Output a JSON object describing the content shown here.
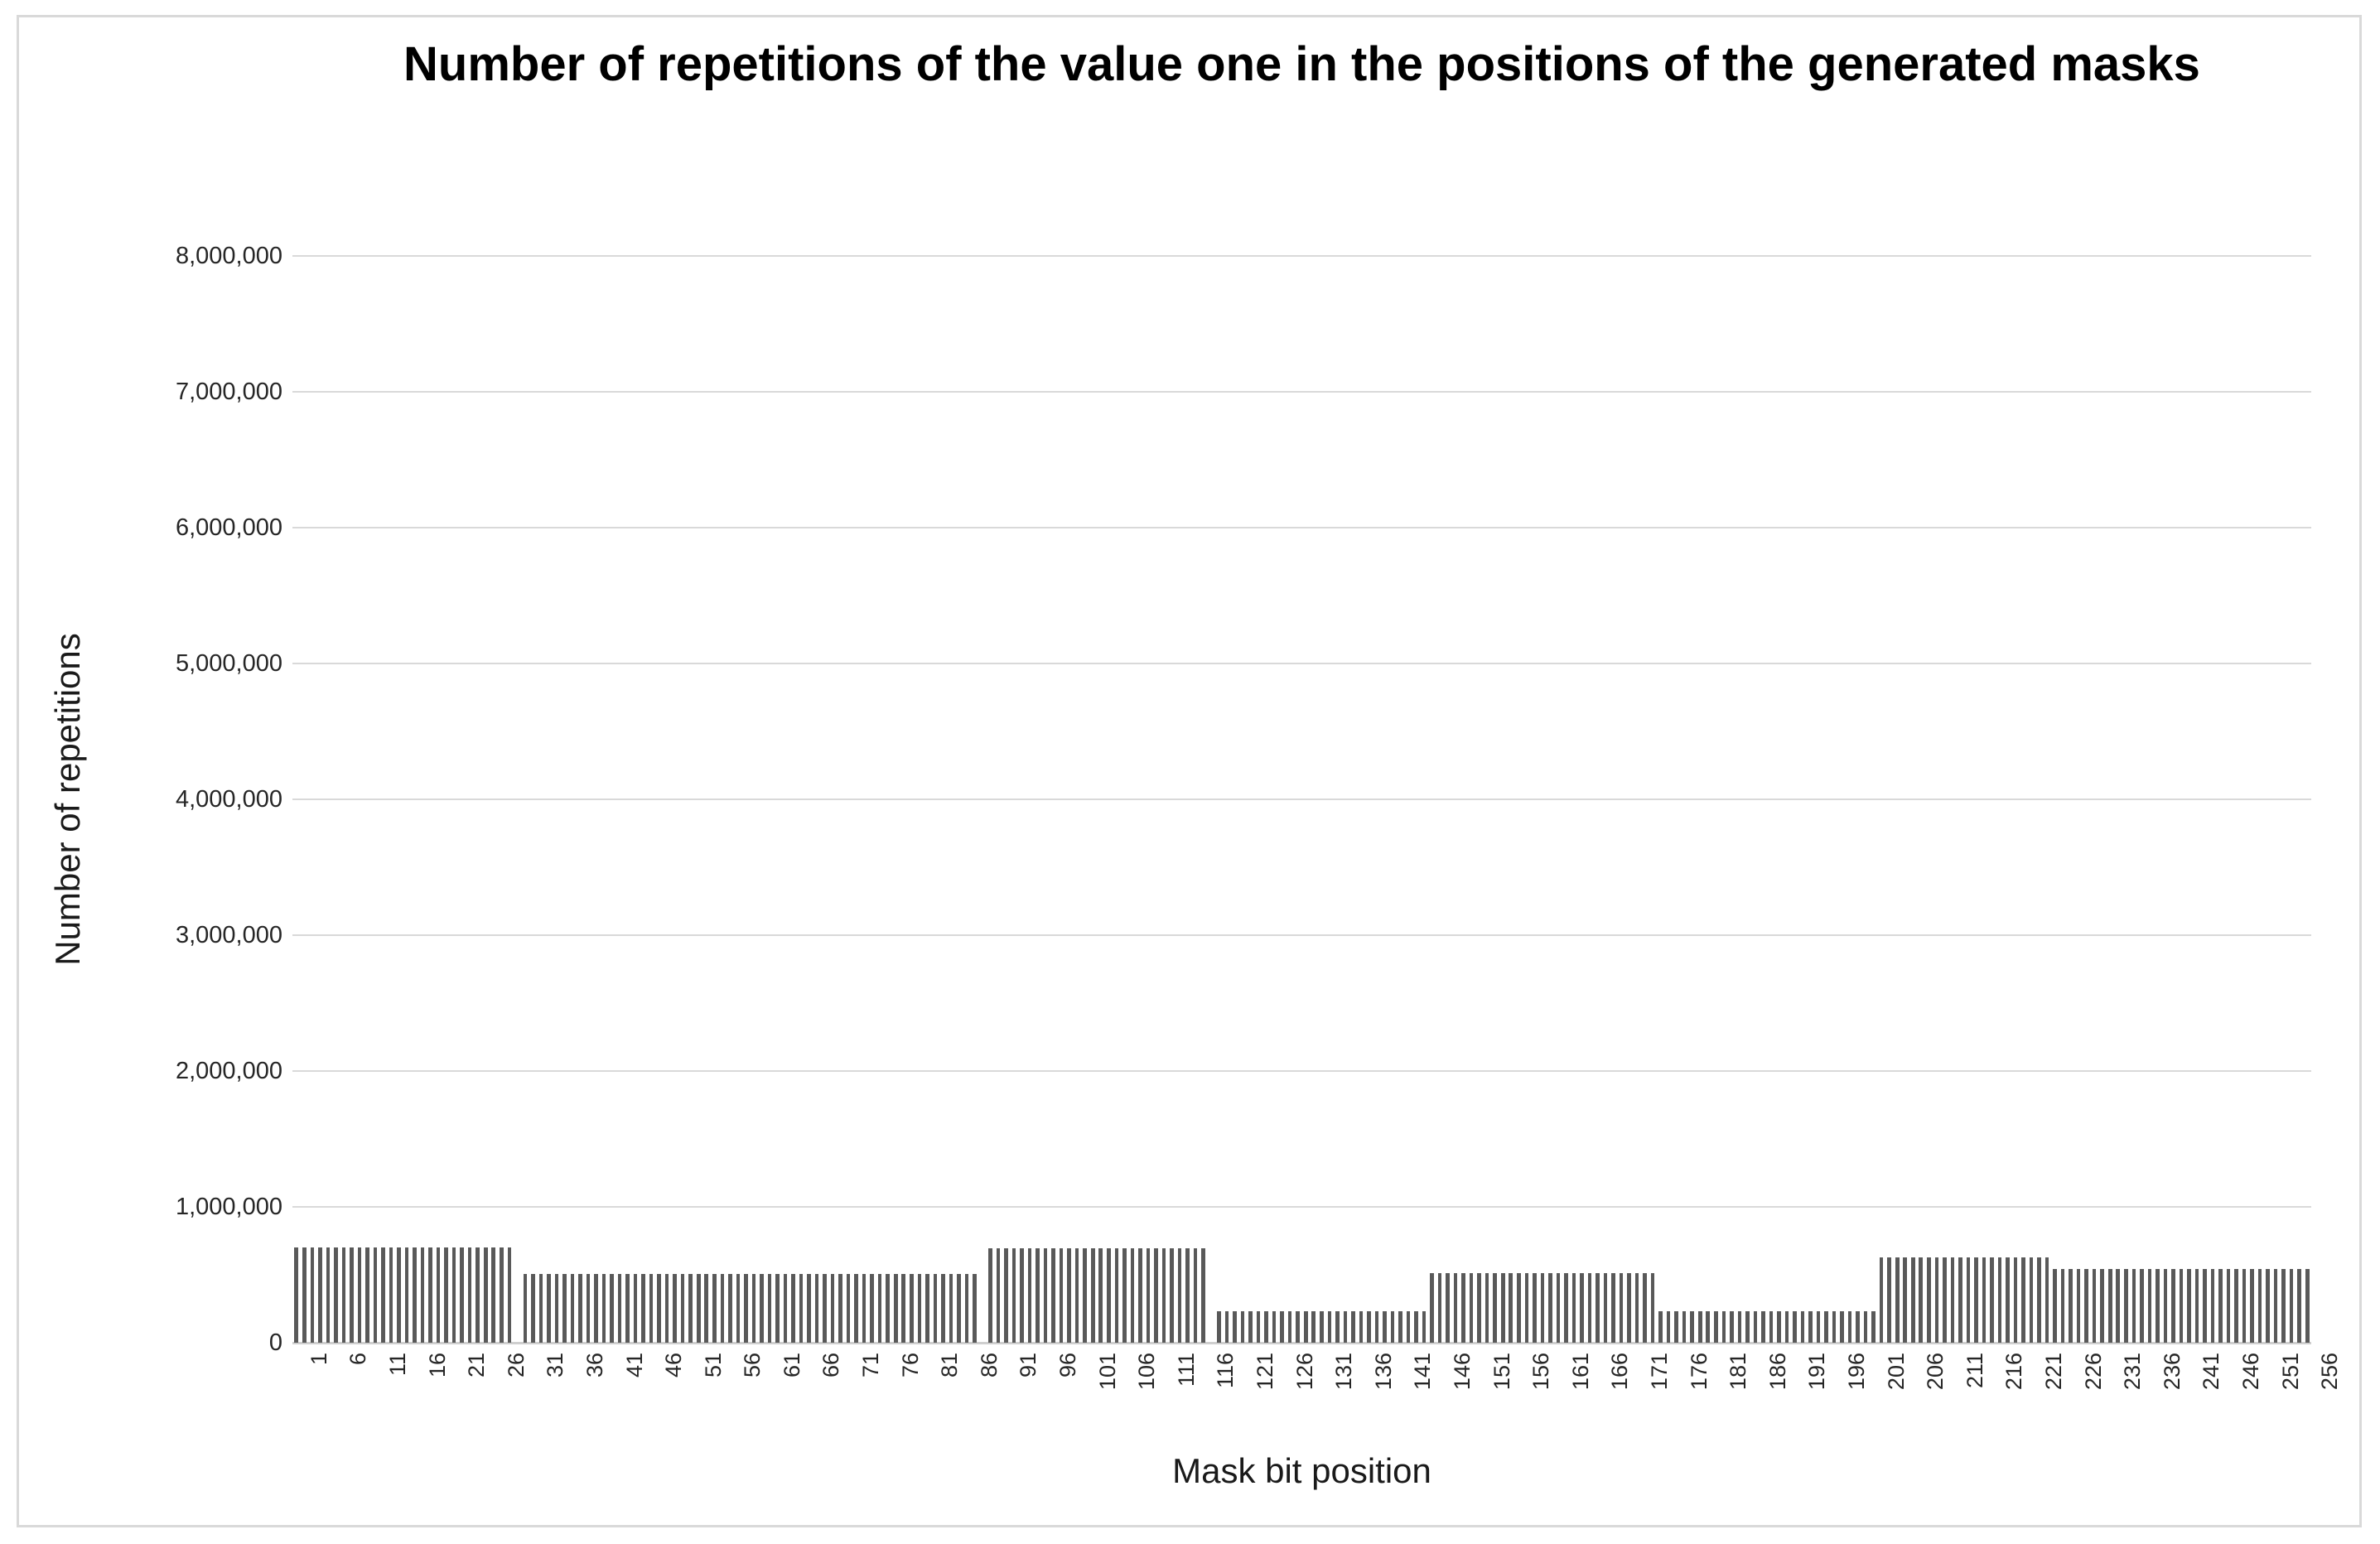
{
  "title": "Number of repetitions of the value one in the positions of the generated masks",
  "y_axis": {
    "title": "Number of repetitions",
    "tick_labels": [
      "0",
      "1,000,000",
      "2,000,000",
      "3,000,000",
      "4,000,000",
      "5,000,000",
      "6,000,000",
      "7,000,000",
      "8,000,000"
    ],
    "min": 0,
    "max": 8000000,
    "step": 1000000
  },
  "x_axis": {
    "title": "Mask bit position",
    "tick_labels": [
      "1",
      "6",
      "11",
      "16",
      "21",
      "26",
      "31",
      "36",
      "41",
      "46",
      "51",
      "56",
      "61",
      "66",
      "71",
      "76",
      "81",
      "86",
      "91",
      "96",
      "101",
      "106",
      "111",
      "116",
      "121",
      "126",
      "131",
      "136",
      "141",
      "146",
      "151",
      "156",
      "161",
      "166",
      "171",
      "176",
      "181",
      "186",
      "191",
      "196",
      "201",
      "206",
      "211",
      "216",
      "221",
      "226",
      "231",
      "236",
      "241",
      "246",
      "251",
      "256"
    ]
  },
  "chart_data": {
    "type": "bar",
    "title": "Number of repetitions of the value one in the positions of the generated masks",
    "xlabel": "Mask bit position",
    "ylabel": "Number of repetitions",
    "ylim": [
      0,
      8000000
    ],
    "x_range": [
      1,
      256
    ],
    "n_bars": 256,
    "grid": true,
    "legend": "none",
    "bar_color": "#595959",
    "gridline_color": "#d9d9d9",
    "blocks": [
      {
        "from": 1,
        "to": 28,
        "value": 700000
      },
      {
        "from": 29,
        "to": 29,
        "value": 0
      },
      {
        "from": 30,
        "to": 87,
        "value": 505000
      },
      {
        "from": 88,
        "to": 88,
        "value": 0
      },
      {
        "from": 89,
        "to": 116,
        "value": 695000
      },
      {
        "from": 117,
        "to": 117,
        "value": 0
      },
      {
        "from": 118,
        "to": 144,
        "value": 230000
      },
      {
        "from": 145,
        "to": 173,
        "value": 510000
      },
      {
        "from": 174,
        "to": 201,
        "value": 230000
      },
      {
        "from": 202,
        "to": 223,
        "value": 630000
      },
      {
        "from": 224,
        "to": 256,
        "value": 545000
      }
    ]
  }
}
